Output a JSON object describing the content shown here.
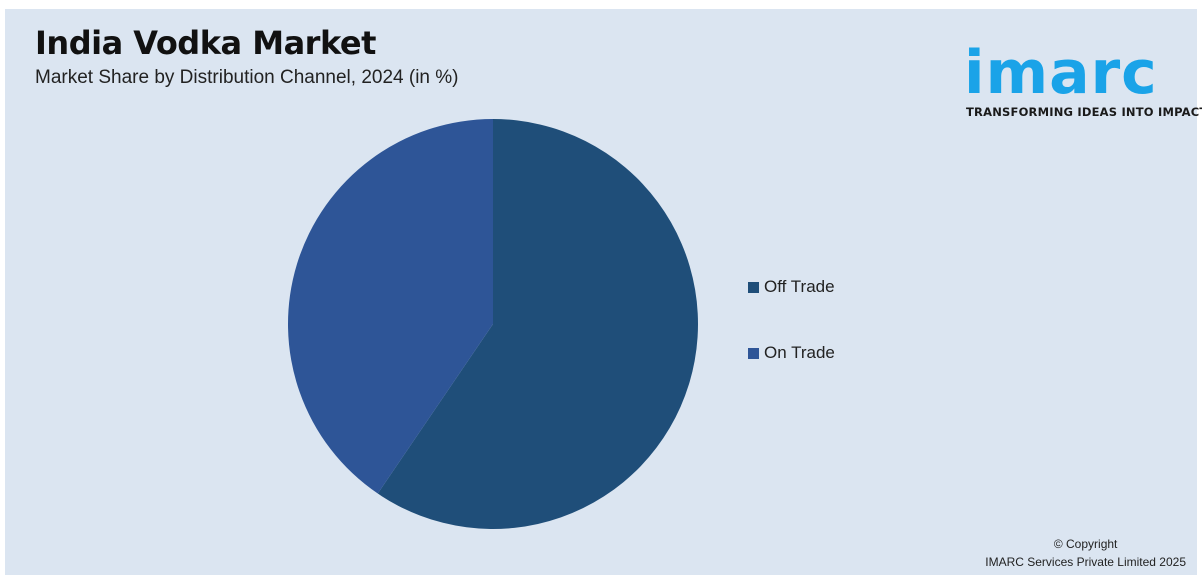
{
  "title": "India Vodka Market",
  "subtitle": "Market Share by Distribution Channel, 2024 (in %)",
  "logo": {
    "word": "imarc",
    "tagline": "TRANSFORMING IDEAS INTO IMPACT",
    "color": "#1aa3e8"
  },
  "chart_data": {
    "type": "pie",
    "title": "India Vodka Market",
    "subtitle": "Market Share by Distribution Channel, 2024 (in %)",
    "categories": [
      "Off Trade",
      "On Trade"
    ],
    "values": [
      59.5,
      40.5
    ],
    "colors": [
      "#1f4e79",
      "#2e5597"
    ],
    "legend_position": "right",
    "start_angle_deg": 0,
    "direction": "clockwise"
  },
  "legend": [
    {
      "label": "Off Trade",
      "color": "#1f4e79"
    },
    {
      "label": "On Trade",
      "color": "#2e5597"
    }
  ],
  "footer": {
    "copyright_line1": "© Copyright",
    "copyright_line2": "IMARC Services Private Limited 2025"
  }
}
